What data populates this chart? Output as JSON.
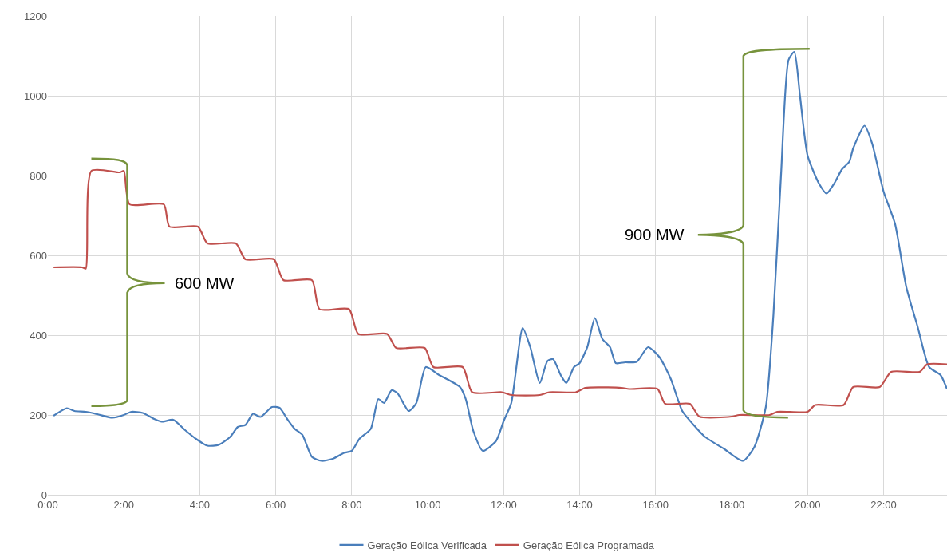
{
  "chart_data": {
    "type": "line",
    "xlim": [
      0,
      23.67
    ],
    "xticks": [
      {
        "value": 0,
        "label": "0:00"
      },
      {
        "value": 2,
        "label": "2:00"
      },
      {
        "value": 4,
        "label": "4:00"
      },
      {
        "value": 6,
        "label": "6:00"
      },
      {
        "value": 8,
        "label": "8:00"
      },
      {
        "value": 10,
        "label": "10:00"
      },
      {
        "value": 12,
        "label": "12:00"
      },
      {
        "value": 14,
        "label": "14:00"
      },
      {
        "value": 16,
        "label": "16:00"
      },
      {
        "value": 18,
        "label": "18:00"
      },
      {
        "value": 20,
        "label": "20:00"
      },
      {
        "value": 22,
        "label": "22:00"
      }
    ],
    "ylim": [
      0,
      1200
    ],
    "yticks": [
      0,
      200,
      400,
      600,
      800,
      1000,
      1200
    ],
    "grid": true,
    "legend": "bottom",
    "series": [
      {
        "name": "Geração Eólica Verificada",
        "color": "#4a7ebb",
        "x": [
          0.15,
          0.5,
          0.7,
          1.0,
          1.3,
          1.7,
          2.0,
          2.2,
          2.5,
          2.8,
          3.0,
          3.3,
          3.6,
          3.9,
          4.2,
          4.5,
          4.8,
          5.0,
          5.2,
          5.4,
          5.6,
          5.9,
          6.1,
          6.3,
          6.5,
          6.7,
          6.95,
          7.2,
          7.5,
          7.8,
          8.0,
          8.2,
          8.5,
          8.7,
          8.85,
          9.05,
          9.2,
          9.5,
          9.7,
          9.95,
          10.3,
          10.6,
          10.85,
          11.0,
          11.2,
          11.45,
          11.8,
          12.0,
          12.2,
          12.5,
          12.7,
          12.95,
          13.15,
          13.3,
          13.5,
          13.65,
          13.85,
          14.0,
          14.2,
          14.4,
          14.6,
          14.8,
          14.95,
          15.2,
          15.5,
          15.8,
          16.1,
          16.4,
          16.7,
          17.0,
          17.3,
          17.8,
          18.3,
          18.6,
          18.9,
          19.1,
          19.3,
          19.5,
          19.65,
          19.8,
          20.0,
          20.3,
          20.5,
          20.7,
          20.9,
          21.1,
          21.2,
          21.5,
          21.7,
          22.0,
          22.3,
          22.6,
          22.9,
          23.2,
          23.5,
          23.67
        ],
        "values": [
          198,
          217,
          210,
          208,
          202,
          193,
          200,
          208,
          205,
          190,
          183,
          188,
          163,
          140,
          123,
          125,
          145,
          170,
          175,
          203,
          195,
          220,
          218,
          190,
          165,
          150,
          95,
          85,
          90,
          105,
          110,
          140,
          165,
          240,
          230,
          262,
          255,
          210,
          230,
          320,
          300,
          285,
          270,
          240,
          160,
          110,
          135,
          185,
          230,
          418,
          370,
          280,
          335,
          340,
          300,
          280,
          320,
          330,
          370,
          443,
          390,
          370,
          330,
          332,
          333,
          370,
          345,
          290,
          210,
          175,
          145,
          115,
          85,
          120,
          220,
          450,
          800,
          1090,
          1110,
          1000,
          850,
          780,
          755,
          780,
          815,
          835,
          868,
          925,
          880,
          760,
          680,
          520,
          420,
          320,
          300,
          265
        ]
      },
      {
        "name": "Geração Eólica Programada",
        "color": "#c0504d",
        "x": [
          0.15,
          0.9,
          1.0,
          1.15,
          1.9,
          2.0,
          2.15,
          3.05,
          3.2,
          3.95,
          4.2,
          4.95,
          5.2,
          5.95,
          6.2,
          6.95,
          7.15,
          7.93,
          8.17,
          8.93,
          9.17,
          9.92,
          10.15,
          10.92,
          11.17,
          11.95,
          12.2,
          12.95,
          13.2,
          13.9,
          14.15,
          15.1,
          15.3,
          16.05,
          16.25,
          16.9,
          17.15,
          18.0,
          18.2,
          19.0,
          19.2,
          20.0,
          20.2,
          20.95,
          21.2,
          21.9,
          22.2,
          22.95,
          23.15,
          23.67
        ],
        "values": [
          570,
          570,
          567,
          812,
          808,
          812,
          728,
          728,
          672,
          672,
          630,
          630,
          590,
          590,
          538,
          538,
          465,
          465,
          403,
          403,
          368,
          368,
          320,
          320,
          257,
          257,
          250,
          250,
          257,
          257,
          268,
          268,
          265,
          265,
          228,
          228,
          196,
          196,
          200,
          200,
          208,
          208,
          225,
          225,
          270,
          270,
          308,
          308,
          327,
          327
        ]
      }
    ],
    "annotations": [
      "600 MW",
      "900 MW"
    ]
  }
}
